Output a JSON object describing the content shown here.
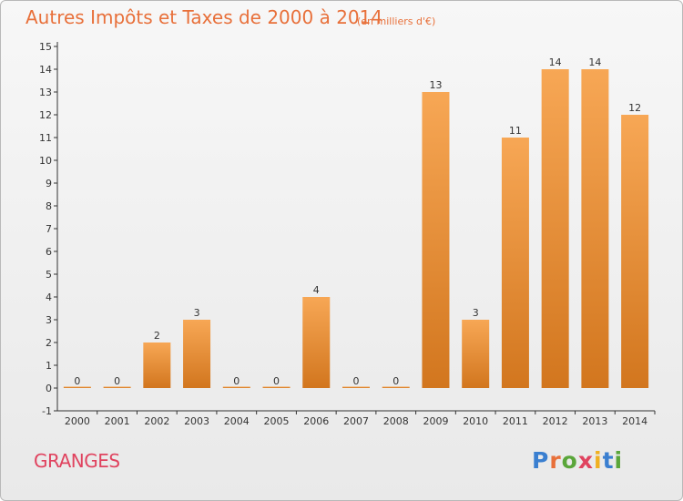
{
  "header": {
    "title": "Autres Impôts et Taxes de 2000 à 2014",
    "subtitle": "(en milliers d'€)"
  },
  "footer": {
    "place": "GRANGES",
    "logo": "Proxiti"
  },
  "colors": {
    "title": "#e8703a",
    "place": "#e0435f",
    "bar_light": "#f7a755",
    "bar_dark": "#d2761e"
  },
  "chart_data": {
    "type": "bar",
    "title": "Autres Impôts et Taxes de 2000 à 2014",
    "subtitle": "(en milliers d'€)",
    "categories": [
      "2000",
      "2001",
      "2002",
      "2003",
      "2004",
      "2005",
      "2006",
      "2007",
      "2008",
      "2009",
      "2010",
      "2011",
      "2012",
      "2013",
      "2014"
    ],
    "values": [
      0,
      0,
      2,
      3,
      0,
      0,
      4,
      0,
      0,
      13,
      3,
      11,
      14,
      14,
      12
    ],
    "data_labels": [
      "0",
      "0",
      "2",
      "3",
      "0",
      "0",
      "4",
      "0",
      "0",
      "13",
      "3",
      "11",
      "14",
      "14",
      "12"
    ],
    "y_ticks": [
      "-1",
      "0",
      "1",
      "2",
      "3",
      "4",
      "5",
      "6",
      "7",
      "8",
      "9",
      "10",
      "11",
      "12",
      "13",
      "14",
      "15"
    ],
    "ylim": [
      -1,
      15
    ],
    "grid": false,
    "legend": "none"
  }
}
